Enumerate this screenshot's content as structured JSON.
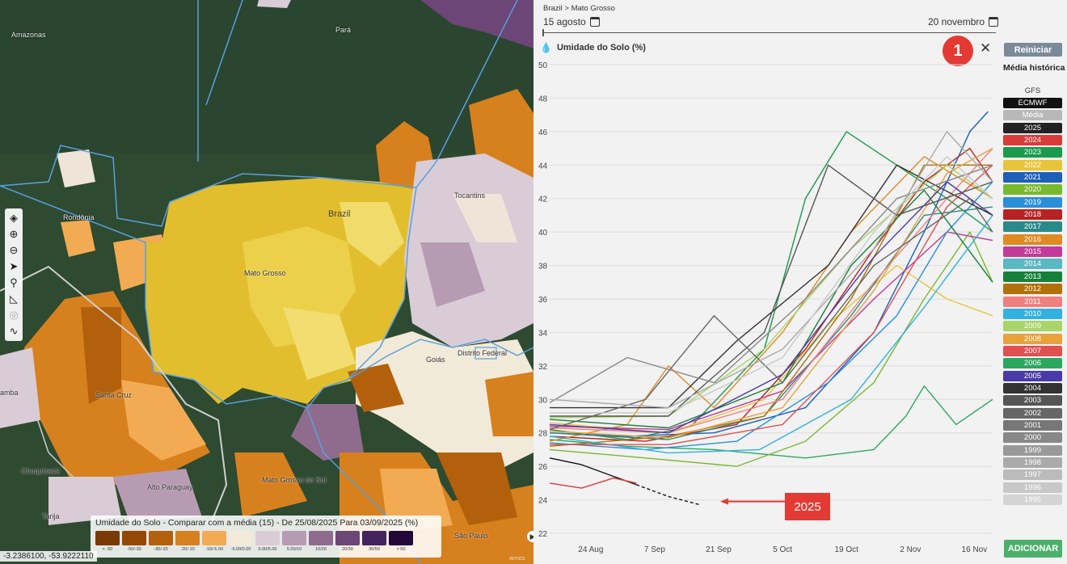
{
  "map": {
    "labels": [
      {
        "text": "Amazonas"
      },
      {
        "text": "Pará"
      },
      {
        "text": "Rondônia"
      },
      {
        "text": "Brazil"
      },
      {
        "text": "Mato Grosso"
      },
      {
        "text": "Tocantins"
      },
      {
        "text": "Goiás"
      },
      {
        "text": "Distrito Federal"
      },
      {
        "text": "Santa Cruz"
      },
      {
        "text": "Chuquisaca"
      },
      {
        "text": "Alto Paraguay"
      },
      {
        "text": "Mato Grosso do Sul"
      },
      {
        "text": "Tarija"
      },
      {
        "text": "São Paulo"
      },
      {
        "text": "amba"
      }
    ],
    "legend": {
      "title": "Umidade do Solo - Comparar com a média (15) - De 25/08/2025 Para 03/09/2025 (%)",
      "items": [
        {
          "label": "< -50",
          "color": "#7a3a06"
        },
        {
          "label": "-50/-30",
          "color": "#944806"
        },
        {
          "label": "-30/-20",
          "color": "#b3600c"
        },
        {
          "label": "-20/-10",
          "color": "#d7801e"
        },
        {
          "label": "-10/-5.00",
          "color": "#f2ab52"
        },
        {
          "label": "-5.00/0.00",
          "color": "#f2ead8"
        },
        {
          "label": "0.00/5.00",
          "color": "#d9ccd6"
        },
        {
          "label": "5.00/10",
          "color": "#b79bb3"
        },
        {
          "label": "10/20",
          "color": "#8f6c8e"
        },
        {
          "label": "20/30",
          "color": "#6b4677"
        },
        {
          "label": "30/50",
          "color": "#45235c"
        },
        {
          "label": "> 50",
          "color": "#210838"
        }
      ]
    },
    "coords": "-3.2386100, -53.9222110",
    "attribution": "armos",
    "tools": [
      "layers-icon",
      "zoom-in-icon",
      "zoom-out-icon",
      "locate-icon",
      "search-icon",
      "measure-icon",
      "target-icon",
      "draw-icon"
    ]
  },
  "panel": {
    "breadcrumb": "Brazil > Mato Grosso",
    "date_start": "15 agosto",
    "date_end": "20 novembro",
    "chart_title": "Umidade do Solo (%)",
    "badge": "1",
    "close": "✕",
    "reset_label": "Reiniciar",
    "media_historica": "Média histórica",
    "gfs": "GFS",
    "add_label": "ADICIONAR",
    "annotation": "2025",
    "series": [
      {
        "name": "ECMWF",
        "color": "#111111"
      },
      {
        "name": "Média",
        "color": "#b8b8b8"
      },
      {
        "name": "2025",
        "color": "#222222"
      },
      {
        "name": "2024",
        "color": "#d93b3b"
      },
      {
        "name": "2023",
        "color": "#1a9a4a"
      },
      {
        "name": "2022",
        "color": "#e8c43a"
      },
      {
        "name": "2021",
        "color": "#1e5fb8"
      },
      {
        "name": "2020",
        "color": "#7ab82e"
      },
      {
        "name": "2019",
        "color": "#2a8fd8"
      },
      {
        "name": "2018",
        "color": "#b82222"
      },
      {
        "name": "2017",
        "color": "#2a8a8a"
      },
      {
        "name": "2016",
        "color": "#e08a22"
      },
      {
        "name": "2015",
        "color": "#c23a9a"
      },
      {
        "name": "2014",
        "color": "#5ab8c2"
      },
      {
        "name": "2013",
        "color": "#16803a"
      },
      {
        "name": "2012",
        "color": "#b0700a"
      },
      {
        "name": "2011",
        "color": "#f08080"
      },
      {
        "name": "2010",
        "color": "#32b0e0"
      },
      {
        "name": "2009",
        "color": "#a8d46a"
      },
      {
        "name": "2008",
        "color": "#e8a23a"
      },
      {
        "name": "2007",
        "color": "#e05050"
      },
      {
        "name": "2006",
        "color": "#2aa860"
      },
      {
        "name": "2005",
        "color": "#4a3aa8"
      },
      {
        "name": "2004",
        "color": "#333333"
      },
      {
        "name": "2003",
        "color": "#555555"
      },
      {
        "name": "2002",
        "color": "#666666"
      },
      {
        "name": "2001",
        "color": "#777777"
      },
      {
        "name": "2000",
        "color": "#888888"
      },
      {
        "name": "1999",
        "color": "#999999"
      },
      {
        "name": "1998",
        "color": "#aaaaaa"
      },
      {
        "name": "1997",
        "color": "#bbbbbb"
      },
      {
        "name": "1996",
        "color": "#c8c8c8"
      },
      {
        "name": "1995",
        "color": "#d4d4d4"
      }
    ]
  },
  "chart_data": {
    "type": "line",
    "title": "Umidade do Solo (%)",
    "x_ticks": [
      "24 Aug",
      "7 Sep",
      "21 Sep",
      "5 Oct",
      "19 Oct",
      "2 Nov",
      "16 Nov"
    ],
    "y_ticks": [
      22,
      24,
      26,
      28,
      30,
      32,
      34,
      36,
      38,
      40,
      42,
      44,
      46,
      48,
      50
    ],
    "ylim": [
      22,
      50
    ],
    "xlim": [
      "2025-08-15",
      "2025-11-20"
    ],
    "grid": "horizontal",
    "series": [
      {
        "name": "2025",
        "style": "solid",
        "points": [
          [
            "2025-08-15",
            26.5
          ],
          [
            "2025-08-22",
            26.1
          ],
          [
            "2025-08-29",
            25.4
          ],
          [
            "2025-09-03",
            24.9
          ]
        ]
      },
      {
        "name": "2025",
        "style": "dashed",
        "points": [
          [
            "2025-09-03",
            24.9
          ],
          [
            "2025-09-10",
            24.2
          ],
          [
            "2025-09-17",
            23.7
          ]
        ]
      },
      {
        "name": "2024",
        "style": "solid",
        "points": [
          [
            "2025-08-15",
            25.0
          ],
          [
            "2025-08-22",
            24.7
          ],
          [
            "2025-08-29",
            25.3
          ],
          [
            "2025-09-03",
            25.0
          ]
        ]
      },
      {
        "name": "2023",
        "style": "solid",
        "points": [
          [
            "2025-08-15",
            28.2
          ],
          [
            "2025-09-01",
            27.6
          ],
          [
            "2025-09-15",
            28.4
          ],
          [
            "2025-10-01",
            33.0
          ],
          [
            "2025-10-10",
            42.0
          ],
          [
            "2025-10-19",
            46.0
          ],
          [
            "2025-10-30",
            44.0
          ],
          [
            "2025-11-10",
            42.0
          ],
          [
            "2025-11-20",
            40.0
          ]
        ]
      },
      {
        "name": "2021",
        "style": "solid",
        "points": [
          [
            "2025-08-15",
            28.0
          ],
          [
            "2025-09-01",
            27.8
          ],
          [
            "2025-09-20",
            28.0
          ],
          [
            "2025-10-10",
            29.5
          ],
          [
            "2025-10-25",
            34.0
          ],
          [
            "2025-11-05",
            40.0
          ],
          [
            "2025-11-15",
            46.0
          ],
          [
            "2025-11-19",
            47.2
          ]
        ]
      },
      {
        "name": "2006",
        "style": "solid",
        "points": [
          [
            "2025-08-15",
            27.6
          ],
          [
            "2025-09-01",
            27.2
          ],
          [
            "2025-09-20",
            27.0
          ],
          [
            "2025-10-10",
            26.5
          ],
          [
            "2025-10-25",
            27.0
          ],
          [
            "2025-11-01",
            29.0
          ],
          [
            "2025-11-05",
            30.8
          ],
          [
            "2025-11-12",
            28.5
          ],
          [
            "2025-11-20",
            30.0
          ]
        ]
      },
      {
        "name": "2018",
        "style": "solid",
        "points": [
          [
            "2025-08-15",
            27.8
          ],
          [
            "2025-09-05",
            27.5
          ],
          [
            "2025-09-25",
            28.5
          ],
          [
            "2025-10-10",
            33.0
          ],
          [
            "2025-10-25",
            39.0
          ],
          [
            "2025-11-05",
            43.0
          ],
          [
            "2025-11-15",
            45.0
          ],
          [
            "2025-11-20",
            43.0
          ]
        ]
      },
      {
        "name": "2016",
        "style": "solid",
        "points": [
          [
            "2025-08-15",
            27.5
          ],
          [
            "2025-09-01",
            28.5
          ],
          [
            "2025-09-10",
            32.0
          ],
          [
            "2025-09-20",
            29.5
          ],
          [
            "2025-10-05",
            34.0
          ],
          [
            "2025-10-20",
            40.0
          ],
          [
            "2025-11-05",
            44.5
          ],
          [
            "2025-11-20",
            42.0
          ]
        ]
      },
      {
        "name": "2020",
        "style": "solid",
        "points": [
          [
            "2025-08-15",
            27.0
          ],
          [
            "2025-09-05",
            26.5
          ],
          [
            "2025-09-25",
            26.0
          ],
          [
            "2025-10-10",
            27.5
          ],
          [
            "2025-10-25",
            31.0
          ],
          [
            "2025-11-05",
            36.0
          ],
          [
            "2025-11-15",
            40.0
          ],
          [
            "2025-11-20",
            37.0
          ]
        ]
      },
      {
        "name": "2022",
        "style": "solid",
        "points": [
          [
            "2025-08-15",
            28.6
          ],
          [
            "2025-09-10",
            28.0
          ],
          [
            "2025-10-01",
            30.0
          ],
          [
            "2025-10-15",
            34.5
          ],
          [
            "2025-10-30",
            38.0
          ],
          [
            "2025-11-10",
            36.0
          ],
          [
            "2025-11-20",
            35.0
          ]
        ]
      },
      {
        "name": "2015",
        "style": "solid",
        "points": [
          [
            "2025-08-15",
            28.4
          ],
          [
            "2025-09-10",
            28.2
          ],
          [
            "2025-10-05",
            30.5
          ],
          [
            "2025-10-25",
            36.0
          ],
          [
            "2025-11-10",
            40.0
          ],
          [
            "2025-11-20",
            39.5
          ]
        ]
      },
      {
        "name": "2019",
        "style": "solid",
        "points": [
          [
            "2025-08-15",
            27.4
          ],
          [
            "2025-09-05",
            27.0
          ],
          [
            "2025-09-25",
            27.5
          ],
          [
            "2025-10-15",
            31.0
          ],
          [
            "2025-10-30",
            35.0
          ],
          [
            "2025-11-10",
            40.0
          ],
          [
            "2025-11-20",
            43.0
          ]
        ]
      },
      {
        "name": "2017",
        "style": "solid",
        "points": [
          [
            "2025-08-15",
            28.0
          ],
          [
            "2025-09-10",
            27.6
          ],
          [
            "2025-10-01",
            29.0
          ],
          [
            "2025-10-20",
            35.0
          ],
          [
            "2025-11-05",
            41.0
          ],
          [
            "2025-11-20",
            41.5
          ]
        ]
      },
      {
        "name": "2013",
        "style": "solid",
        "points": [
          [
            "2025-08-15",
            28.8
          ],
          [
            "2025-09-10",
            28.3
          ],
          [
            "2025-10-05",
            31.0
          ],
          [
            "2025-10-20",
            38.0
          ],
          [
            "2025-11-05",
            42.5
          ],
          [
            "2025-11-20",
            37.0
          ]
        ]
      },
      {
        "name": "2012",
        "style": "solid",
        "points": [
          [
            "2025-08-15",
            27.2
          ],
          [
            "2025-09-10",
            27.8
          ],
          [
            "2025-10-01",
            29.0
          ],
          [
            "2025-10-20",
            36.0
          ],
          [
            "2025-11-05",
            44.0
          ],
          [
            "2025-11-20",
            44.0
          ]
        ]
      },
      {
        "name": "2011",
        "style": "solid",
        "points": [
          [
            "2025-08-15",
            28.3
          ],
          [
            "2025-09-10",
            28.0
          ],
          [
            "2025-10-05",
            30.0
          ],
          [
            "2025-10-25",
            37.0
          ],
          [
            "2025-11-10",
            42.0
          ],
          [
            "2025-11-20",
            45.0
          ]
        ]
      },
      {
        "name": "2010",
        "style": "solid",
        "points": [
          [
            "2025-08-15",
            27.8
          ],
          [
            "2025-09-10",
            26.8
          ],
          [
            "2025-09-30",
            27.0
          ],
          [
            "2025-10-20",
            30.0
          ],
          [
            "2025-11-05",
            35.5
          ],
          [
            "2025-11-20",
            41.0
          ]
        ]
      },
      {
        "name": "2009",
        "style": "solid",
        "points": [
          [
            "2025-08-15",
            28.9
          ],
          [
            "2025-09-10",
            29.0
          ],
          [
            "2025-10-01",
            33.0
          ],
          [
            "2025-10-20",
            39.0
          ],
          [
            "2025-11-10",
            44.0
          ],
          [
            "2025-11-20",
            42.0
          ]
        ]
      },
      {
        "name": "2008",
        "style": "solid",
        "points": [
          [
            "2025-08-15",
            28.1
          ],
          [
            "2025-09-10",
            27.7
          ],
          [
            "2025-10-05",
            29.5
          ],
          [
            "2025-10-25",
            36.5
          ],
          [
            "2025-11-10",
            43.5
          ],
          [
            "2025-11-20",
            45.0
          ]
        ]
      },
      {
        "name": "2007",
        "style": "solid",
        "points": [
          [
            "2025-08-15",
            27.3
          ],
          [
            "2025-09-10",
            27.3
          ],
          [
            "2025-10-05",
            28.5
          ],
          [
            "2025-10-25",
            34.0
          ],
          [
            "2025-11-10",
            41.5
          ],
          [
            "2025-11-20",
            44.0
          ]
        ]
      },
      {
        "name": "2005",
        "style": "solid",
        "points": [
          [
            "2025-08-15",
            28.5
          ],
          [
            "2025-09-10",
            28.0
          ],
          [
            "2025-10-05",
            31.5
          ],
          [
            "2025-10-25",
            38.5
          ],
          [
            "2025-11-10",
            43.0
          ],
          [
            "2025-11-20",
            41.0
          ]
        ]
      },
      {
        "name": "2004",
        "style": "solid",
        "points": [
          [
            "2025-08-15",
            29.5
          ],
          [
            "2025-09-10",
            29.5
          ],
          [
            "2025-09-25",
            33.5
          ],
          [
            "2025-10-15",
            38.0
          ],
          [
            "2025-10-30",
            44.0
          ],
          [
            "2025-11-20",
            41.0
          ]
        ]
      },
      {
        "name": "2003",
        "style": "solid",
        "points": [
          [
            "2025-08-15",
            29.0
          ],
          [
            "2025-09-10",
            29.0
          ],
          [
            "2025-10-01",
            34.0
          ],
          [
            "2025-10-15",
            44.0
          ],
          [
            "2025-10-30",
            41.0
          ],
          [
            "2025-11-20",
            43.0
          ]
        ]
      },
      {
        "name": "2002",
        "style": "solid",
        "points": [
          [
            "2025-08-15",
            28.2
          ],
          [
            "2025-09-05",
            30.0
          ],
          [
            "2025-09-20",
            35.0
          ],
          [
            "2025-10-05",
            31.0
          ],
          [
            "2025-10-25",
            38.0
          ],
          [
            "2025-11-15",
            42.0
          ],
          [
            "2025-11-20",
            40.0
          ]
        ]
      },
      {
        "name": "2000",
        "style": "solid",
        "points": [
          [
            "2025-08-15",
            29.8
          ],
          [
            "2025-09-01",
            32.5
          ],
          [
            "2025-09-20",
            31.0
          ],
          [
            "2025-10-10",
            36.0
          ],
          [
            "2025-10-30",
            42.0
          ],
          [
            "2025-11-20",
            44.0
          ]
        ]
      },
      {
        "name": "1998",
        "style": "solid",
        "points": [
          [
            "2025-08-15",
            30.0
          ],
          [
            "2025-09-10",
            29.5
          ],
          [
            "2025-10-05",
            33.0
          ],
          [
            "2025-10-25",
            39.0
          ],
          [
            "2025-11-10",
            46.0
          ],
          [
            "2025-11-20",
            43.0
          ]
        ]
      },
      {
        "name": "1996",
        "style": "solid",
        "points": [
          [
            "2025-08-15",
            29.2
          ],
          [
            "2025-09-10",
            29.2
          ],
          [
            "2025-10-05",
            32.5
          ],
          [
            "2025-10-25",
            40.0
          ],
          [
            "2025-11-10",
            44.5
          ],
          [
            "2025-11-20",
            42.0
          ]
        ]
      }
    ]
  }
}
